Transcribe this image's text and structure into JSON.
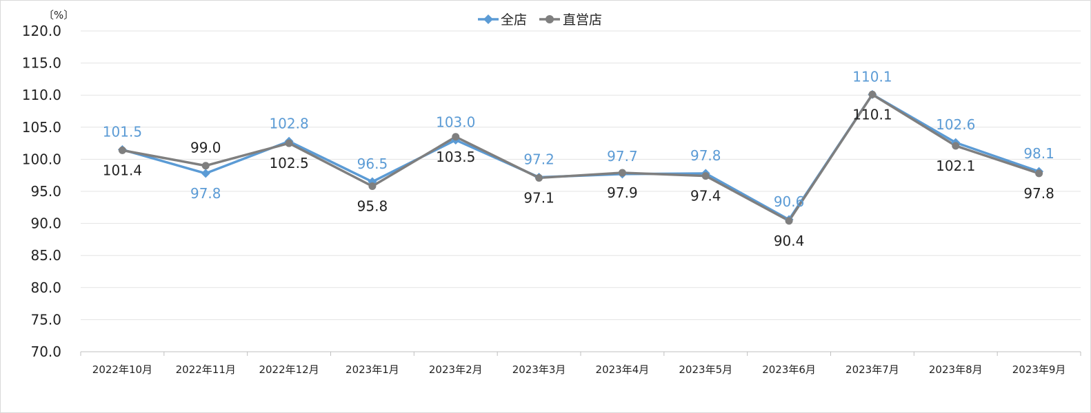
{
  "chart_data": {
    "type": "line",
    "y_unit_label": "〔%〕",
    "ylim": [
      70,
      120
    ],
    "y_ticks": [
      "120.0",
      "115.0",
      "110.0",
      "105.0",
      "100.0",
      "95.0",
      "90.0",
      "85.0",
      "80.0",
      "75.0",
      "70.0"
    ],
    "y_tick_values": [
      120,
      115,
      110,
      105,
      100,
      95,
      90,
      85,
      80,
      75,
      70
    ],
    "grid": true,
    "legend_position": "top-center",
    "categories": [
      "2022年10月",
      "2022年11月",
      "2022年12月",
      "2023年1月",
      "2023年2月",
      "2023年3月",
      "2023年4月",
      "2023年5月",
      "2023年6月",
      "2023年7月",
      "2023年8月",
      "2023年9月"
    ],
    "series": [
      {
        "name": "全店",
        "color": "#5b9bd5",
        "marker": "diamond",
        "values": [
          101.5,
          97.8,
          102.8,
          96.5,
          103.0,
          97.2,
          97.7,
          97.8,
          90.6,
          110.1,
          102.6,
          98.1
        ],
        "labels": [
          "101.5",
          "97.8",
          "102.8",
          "96.5",
          "103.0",
          "97.2",
          "97.7",
          "97.8",
          "90.6",
          "110.1",
          "102.6",
          "98.1"
        ],
        "label_positions": [
          "above",
          "below",
          "above",
          "above",
          "above",
          "above",
          "above",
          "above",
          "above",
          "above",
          "above",
          "above"
        ]
      },
      {
        "name": "直営店",
        "color": "#7f7f7f",
        "marker": "circle",
        "values": [
          101.4,
          99.0,
          102.5,
          95.8,
          103.5,
          97.1,
          97.9,
          97.4,
          90.4,
          110.1,
          102.1,
          97.8
        ],
        "labels": [
          "101.4",
          "99.0",
          "102.5",
          "95.8",
          "103.5",
          "97.1",
          "97.9",
          "97.4",
          "90.4",
          "110.1",
          "102.1",
          "97.8"
        ],
        "label_positions": [
          "below",
          "above",
          "below",
          "below",
          "below",
          "below",
          "below",
          "below",
          "below",
          "below",
          "below",
          "below"
        ]
      }
    ],
    "label_colors": {
      "全店": "#5b9bd5",
      "直営店": "#222222"
    }
  }
}
